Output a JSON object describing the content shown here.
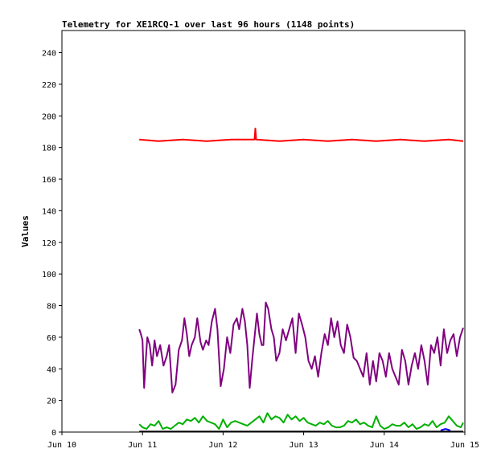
{
  "chart_data": {
    "type": "line",
    "title": "Telemetry for XE1RCQ-1 over last 96 hours (1148 points)",
    "ylabel": "Values",
    "xlabel": "",
    "ylim": [
      0,
      254
    ],
    "xlim": [
      0,
      5
    ],
    "grid": false,
    "legend": "none",
    "yticks": [
      0,
      20,
      40,
      60,
      80,
      100,
      120,
      140,
      160,
      180,
      200,
      220,
      240
    ],
    "xticks": [
      {
        "x": 0,
        "label": "Jun 10"
      },
      {
        "x": 1,
        "label": "Jun 11"
      },
      {
        "x": 2,
        "label": "Jun 12"
      },
      {
        "x": 3,
        "label": "Jun 13"
      },
      {
        "x": 4,
        "label": "Jun 14"
      },
      {
        "x": 5,
        "label": "Jun 15"
      }
    ],
    "series": [
      {
        "color": "#ff0000",
        "x": [
          0.96,
          1.2,
          1.5,
          1.8,
          2.1,
          2.39,
          2.4,
          2.41,
          2.7,
          3.0,
          3.3,
          3.6,
          3.9,
          4.2,
          4.5,
          4.8,
          4.98
        ],
        "values": [
          185,
          184,
          185,
          184,
          185,
          185,
          192,
          185,
          184,
          185,
          184,
          185,
          184,
          185,
          184,
          185,
          184
        ]
      },
      {
        "color": "#800080",
        "x": [
          0.96,
          0.98,
          1.0,
          1.02,
          1.04,
          1.06,
          1.09,
          1.12,
          1.15,
          1.18,
          1.22,
          1.26,
          1.3,
          1.33,
          1.37,
          1.41,
          1.45,
          1.49,
          1.52,
          1.55,
          1.58,
          1.61,
          1.65,
          1.68,
          1.72,
          1.75,
          1.79,
          1.82,
          1.86,
          1.9,
          1.93,
          1.97,
          2.01,
          2.05,
          2.09,
          2.13,
          2.17,
          2.2,
          2.24,
          2.27,
          2.3,
          2.33,
          2.36,
          2.39,
          2.42,
          2.45,
          2.48,
          2.5,
          2.53,
          2.56,
          2.6,
          2.63,
          2.66,
          2.7,
          2.74,
          2.78,
          2.82,
          2.86,
          2.9,
          2.94,
          2.98,
          3.02,
          3.06,
          3.1,
          3.14,
          3.18,
          3.22,
          3.26,
          3.3,
          3.34,
          3.38,
          3.42,
          3.46,
          3.5,
          3.54,
          3.58,
          3.62,
          3.66,
          3.7,
          3.74,
          3.78,
          3.82,
          3.86,
          3.9,
          3.94,
          3.98,
          4.02,
          4.06,
          4.1,
          4.14,
          4.18,
          4.22,
          4.26,
          4.3,
          4.34,
          4.38,
          4.42,
          4.46,
          4.5,
          4.54,
          4.58,
          4.62,
          4.66,
          4.7,
          4.74,
          4.78,
          4.82,
          4.86,
          4.9,
          4.94,
          4.98
        ],
        "values": [
          65,
          62,
          58,
          28,
          45,
          60,
          55,
          42,
          58,
          48,
          55,
          42,
          48,
          55,
          25,
          30,
          52,
          58,
          72,
          62,
          48,
          55,
          60,
          72,
          57,
          52,
          58,
          55,
          70,
          78,
          65,
          29,
          40,
          60,
          50,
          68,
          72,
          65,
          78,
          70,
          55,
          28,
          45,
          60,
          75,
          62,
          55,
          55,
          82,
          78,
          65,
          60,
          45,
          50,
          65,
          58,
          65,
          72,
          50,
          75,
          68,
          60,
          45,
          40,
          48,
          35,
          50,
          62,
          55,
          72,
          60,
          70,
          55,
          50,
          68,
          60,
          47,
          45,
          40,
          35,
          50,
          30,
          45,
          32,
          50,
          45,
          35,
          50,
          40,
          35,
          30,
          52,
          45,
          30,
          42,
          50,
          40,
          55,
          45,
          30,
          55,
          50,
          60,
          42,
          65,
          50,
          58,
          62,
          48,
          60,
          66
        ]
      },
      {
        "color": "#00b000",
        "x": [
          0.96,
          1.0,
          1.05,
          1.1,
          1.15,
          1.2,
          1.25,
          1.3,
          1.35,
          1.4,
          1.45,
          1.5,
          1.55,
          1.6,
          1.65,
          1.7,
          1.75,
          1.8,
          1.85,
          1.9,
          1.95,
          2.0,
          2.05,
          2.1,
          2.15,
          2.2,
          2.25,
          2.3,
          2.35,
          2.4,
          2.45,
          2.5,
          2.55,
          2.6,
          2.65,
          2.7,
          2.75,
          2.8,
          2.85,
          2.9,
          2.95,
          3.0,
          3.05,
          3.1,
          3.15,
          3.2,
          3.25,
          3.3,
          3.35,
          3.4,
          3.45,
          3.5,
          3.55,
          3.6,
          3.65,
          3.7,
          3.75,
          3.8,
          3.85,
          3.9,
          3.95,
          4.0,
          4.05,
          4.1,
          4.15,
          4.2,
          4.25,
          4.3,
          4.35,
          4.4,
          4.45,
          4.5,
          4.55,
          4.6,
          4.65,
          4.7,
          4.75,
          4.8,
          4.85,
          4.9,
          4.95,
          4.98
        ],
        "values": [
          5,
          3,
          2,
          5,
          4,
          7,
          2,
          3,
          2,
          4,
          6,
          5,
          8,
          7,
          9,
          6,
          10,
          7,
          6,
          5,
          2,
          8,
          3,
          6,
          7,
          6,
          5,
          4,
          6,
          8,
          10,
          6,
          12,
          8,
          10,
          9,
          6,
          11,
          8,
          10,
          7,
          9,
          6,
          5,
          4,
          6,
          5,
          7,
          4,
          3,
          3,
          4,
          7,
          6,
          8,
          5,
          6,
          4,
          3,
          10,
          4,
          2,
          3,
          5,
          4,
          4,
          6,
          3,
          5,
          2,
          3,
          5,
          4,
          7,
          3,
          5,
          6,
          10,
          7,
          4,
          3,
          6
        ]
      },
      {
        "color": "#0000ff",
        "x": [
          4.7,
          4.73,
          4.76,
          4.79,
          4.82
        ],
        "values": [
          1,
          1.5,
          2,
          1.5,
          1
        ]
      },
      {
        "color": "#000000",
        "x": [
          0.96,
          1.5,
          2.0,
          2.5,
          3.0,
          3.5,
          4.0,
          4.5,
          4.98
        ],
        "values": [
          0.3,
          0.3,
          0.3,
          0.3,
          0.3,
          0.3,
          0.3,
          0.3,
          0.3
        ]
      }
    ]
  }
}
